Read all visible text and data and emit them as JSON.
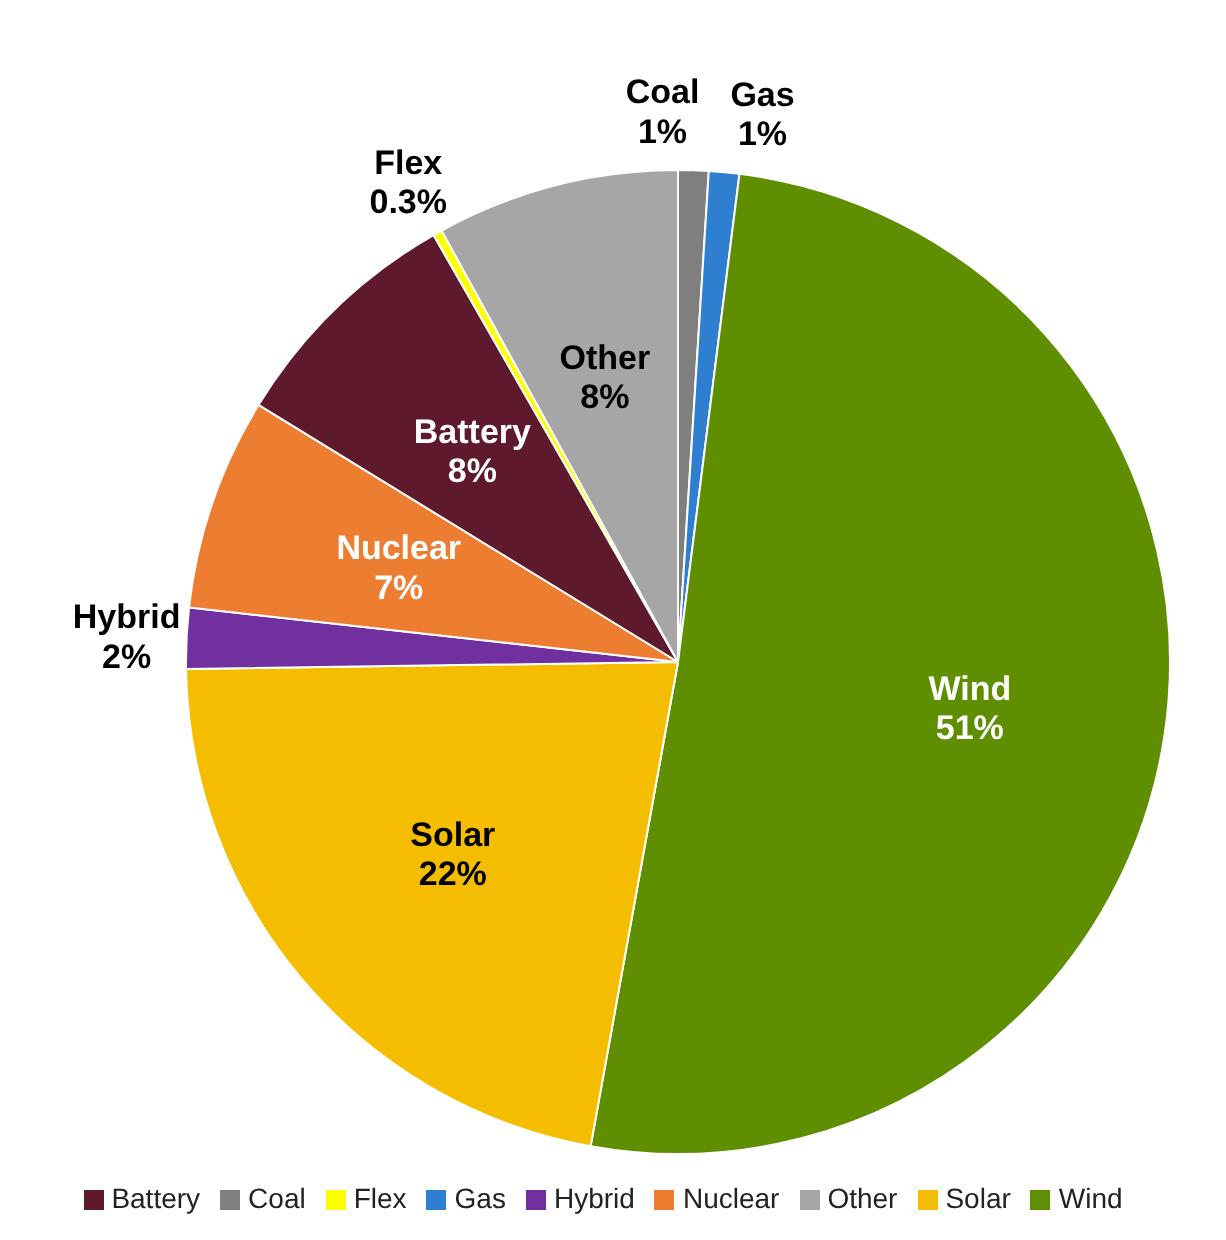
{
  "chart_data": {
    "type": "pie",
    "categories": [
      "Coal",
      "Gas",
      "Wind",
      "Solar",
      "Hybrid",
      "Nuclear",
      "Battery",
      "Flex",
      "Other"
    ],
    "values": [
      1,
      1,
      51,
      22,
      2,
      7,
      8,
      0.3,
      8
    ],
    "value_labels": [
      "1%",
      "1%",
      "51%",
      "22%",
      "2%",
      "7%",
      "8%",
      "0.3%",
      "8%"
    ],
    "colors": [
      "#7f7f7f",
      "#2f7fd0",
      "#5f8f00",
      "#f5bd00",
      "#7030a0",
      "#ed7d31",
      "#5e1a2c",
      "#ffff00",
      "#a6a6a6"
    ],
    "legend": "bottom"
  }
}
